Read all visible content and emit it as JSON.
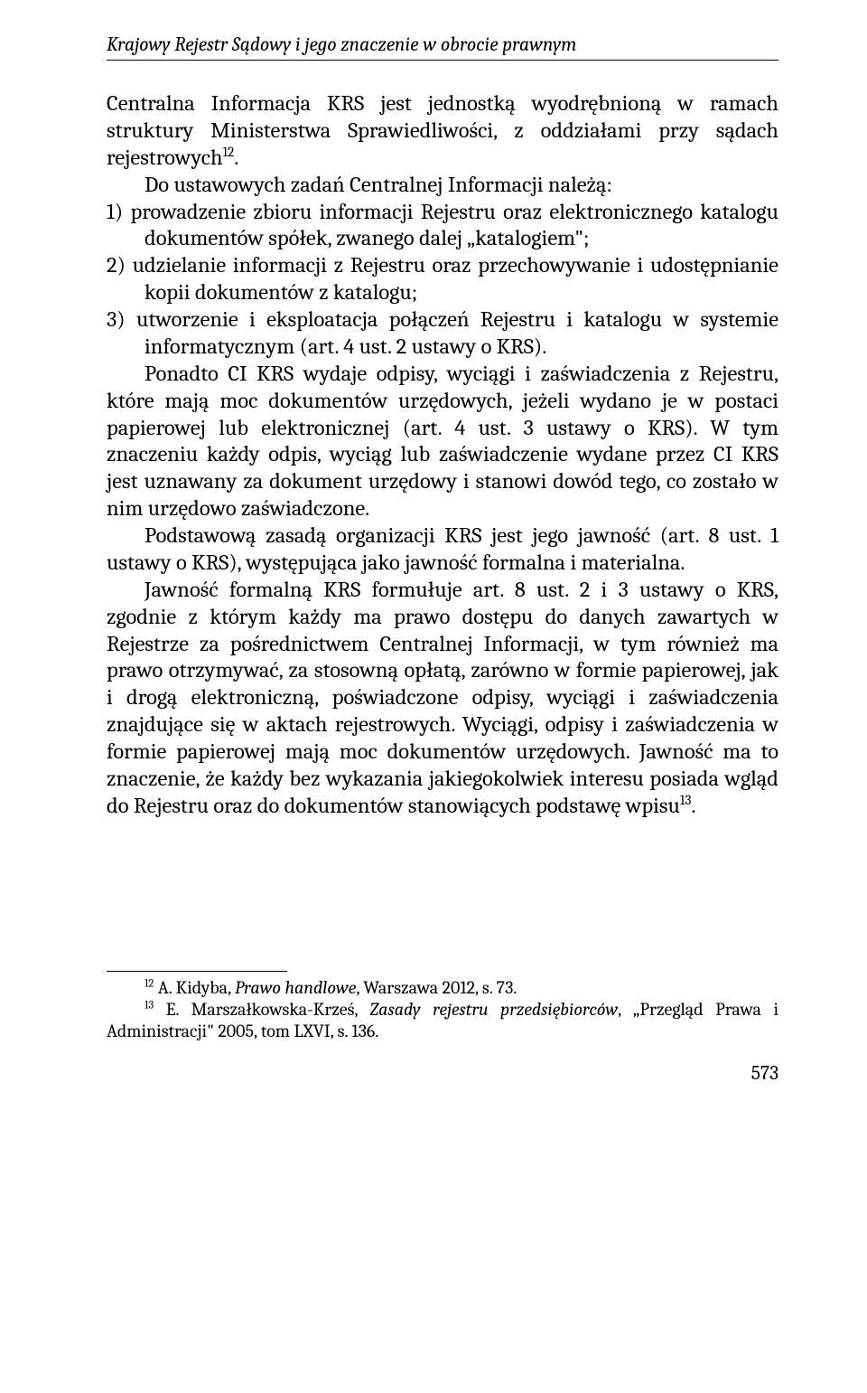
{
  "runningHead": "Krajowy Rejestr Sądowy i jego znaczenie w obrocie prawnym",
  "para1a": "Centralna Informacja KRS jest jednostką wyodrębnioną w ramach struktury Ministerstwa Sprawiedliwości, z oddziałami przy sądach rejestrowych",
  "para1_fn": "12",
  "para1b": ".",
  "para2": "Do ustawowych zadań Centralnej Informacji należą:",
  "list": {
    "i1n": "1) ",
    "i1": "prowadzenie zbioru informacji Rejestru oraz elektronicznego katalogu dokumentów spółek, zwanego dalej „katalogiem\";",
    "i2n": "2) ",
    "i2": "udzielanie informacji z Rejestru oraz przechowywanie i udostępnianie kopii dokumentów z katalogu;",
    "i3n": "3) ",
    "i3": "utworzenie i eksploatacja połączeń Rejestru i katalogu w systemie informatycznym (art. 4 ust. 2 ustawy o KRS)."
  },
  "para3": "Ponadto CI KRS wydaje odpisy, wyciągi i zaświadczenia z Rejestru, które mają moc dokumentów urzędowych, jeżeli wydano je w postaci papierowej lub elektronicznej (art. 4 ust. 3 ustawy o KRS). W tym znaczeniu każdy odpis, wyciąg lub zaświadczenie wydane przez CI KRS jest uznawany za dokument urzędowy i stanowi dowód tego, co zostało w nim urzędowo zaświadczone.",
  "para4": "Podstawową zasadą organizacji KRS jest jego jawność (art. 8 ust. 1 ustawy o KRS), występująca jako jawność formalna i materialna.",
  "para5a": "Jawność formalną KRS formułuje art. 8 ust. 2 i 3 ustawy o KRS, zgodnie z którym każdy ma prawo dostępu do danych zawartych w Rejestrze za pośrednictwem Centralnej Informacji, w tym również ma prawo otrzymywać, za stosowną opłatą, zarówno w formie papierowej, jak i drogą elektroniczną, poświadczone odpisy, wyciągi i zaświadczenia znajdujące się w aktach rejestrowych. Wyciągi, odpisy i zaświadczenia w formie papierowej mają moc dokumentów urzędowych. Jawność ma to znaczenie, że każdy bez wykazania jakiegokolwiek interesu posiada wgląd do Rejestru oraz do dokumentów stanowiących podstawę wpisu",
  "para5_fn": "13",
  "para5b": ".",
  "footnotes": {
    "f12n": "12",
    "f12a": " A. Kidyba, ",
    "f12i": "Prawo handlowe",
    "f12b": ", Warszawa 2012, s. 73.",
    "f13n": "13",
    "f13a": " E. Marszałkowska-Krześ, ",
    "f13i": "Zasady rejestru przedsiębiorców",
    "f13b": ", „Przegląd Prawa i Administracji\" 2005, tom LXVI, s. 136."
  },
  "pageNumber": "573"
}
